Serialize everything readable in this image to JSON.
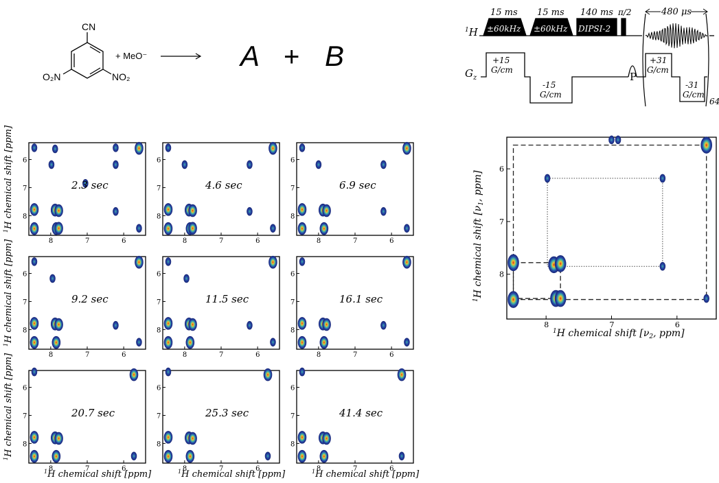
{
  "reaction": {
    "substituent_top": "CN",
    "substituent_left": "O₂N",
    "substituent_right": "NO₂",
    "reagent": "+ MeO⁻",
    "products": [
      "A",
      "+",
      "B"
    ]
  },
  "pulse_sequence": {
    "channel_h": "1H",
    "channel_g": "Gz",
    "block_labels": [
      "±60kHz",
      "±60kHz",
      "DIPSI-2"
    ],
    "durations": [
      "15 ms",
      "15 ms",
      "140 ms"
    ],
    "pi_half": "π/2",
    "acq_time": "480 μs",
    "pulse_p": "P",
    "scans": "64",
    "gradients": [
      {
        "value": "+15",
        "unit": "G/cm"
      },
      {
        "value": "-15",
        "unit": "G/cm"
      },
      {
        "value": "+31",
        "unit": "G/cm"
      },
      {
        "value": "-31",
        "unit": "G/cm"
      }
    ]
  },
  "chart_data": [
    {
      "type": "heatmap",
      "panel": "2.3 sec",
      "xlim": [
        8.6,
        5.4
      ],
      "ylim": [
        5.4,
        8.7
      ],
      "peaks": [
        [
          8.45,
          5.58
        ],
        [
          8.45,
          7.78
        ],
        [
          8.45,
          8.46
        ],
        [
          7.88,
          5.62
        ],
        [
          7.88,
          7.8
        ],
        [
          7.85,
          8.46
        ],
        [
          7.78,
          7.82
        ],
        [
          7.78,
          8.45
        ],
        [
          6.22,
          5.58
        ],
        [
          6.22,
          6.18
        ],
        [
          6.22,
          7.85
        ],
        [
          5.58,
          5.6
        ],
        [
          5.58,
          8.45
        ],
        [
          7.05,
          6.85
        ],
        [
          7.98,
          6.18
        ]
      ]
    },
    {
      "type": "heatmap",
      "panel": "4.6 sec",
      "xlim": [
        8.6,
        5.4
      ],
      "ylim": [
        5.4,
        8.7
      ],
      "peaks": [
        [
          8.45,
          5.58
        ],
        [
          8.45,
          7.78
        ],
        [
          8.45,
          8.46
        ],
        [
          7.88,
          7.8
        ],
        [
          7.85,
          8.46
        ],
        [
          7.78,
          7.82
        ],
        [
          7.78,
          8.45
        ],
        [
          6.22,
          6.18
        ],
        [
          6.22,
          7.85
        ],
        [
          5.58,
          5.6
        ],
        [
          5.58,
          8.45
        ],
        [
          8.0,
          6.18
        ]
      ]
    },
    {
      "type": "heatmap",
      "panel": "6.9 sec",
      "xlim": [
        8.6,
        5.4
      ],
      "ylim": [
        5.4,
        8.7
      ],
      "peaks": [
        [
          8.45,
          5.58
        ],
        [
          8.45,
          7.78
        ],
        [
          8.45,
          8.46
        ],
        [
          7.88,
          7.8
        ],
        [
          7.85,
          8.46
        ],
        [
          7.78,
          7.82
        ],
        [
          6.22,
          6.18
        ],
        [
          6.22,
          7.85
        ],
        [
          5.58,
          5.6
        ],
        [
          5.58,
          8.45
        ],
        [
          8.0,
          6.18
        ]
      ]
    },
    {
      "type": "heatmap",
      "panel": "9.2 sec",
      "xlim": [
        8.6,
        5.4
      ],
      "ylim": [
        5.4,
        8.7
      ],
      "peaks": [
        [
          8.45,
          5.58
        ],
        [
          8.45,
          7.78
        ],
        [
          8.45,
          8.46
        ],
        [
          7.88,
          7.8
        ],
        [
          7.85,
          8.46
        ],
        [
          7.78,
          7.82
        ],
        [
          6.22,
          7.85
        ],
        [
          5.58,
          5.6
        ],
        [
          5.58,
          8.45
        ],
        [
          7.95,
          6.18
        ]
      ]
    },
    {
      "type": "heatmap",
      "panel": "11.5 sec",
      "xlim": [
        8.6,
        5.4
      ],
      "ylim": [
        5.4,
        8.7
      ],
      "peaks": [
        [
          8.45,
          5.58
        ],
        [
          8.45,
          7.78
        ],
        [
          8.45,
          8.46
        ],
        [
          7.88,
          7.8
        ],
        [
          7.85,
          8.46
        ],
        [
          7.78,
          7.82
        ],
        [
          6.22,
          7.85
        ],
        [
          5.58,
          5.6
        ],
        [
          5.58,
          8.45
        ],
        [
          7.95,
          6.18
        ]
      ]
    },
    {
      "type": "heatmap",
      "panel": "16.1 sec",
      "xlim": [
        8.6,
        5.4
      ],
      "ylim": [
        5.4,
        8.7
      ],
      "peaks": [
        [
          8.45,
          5.58
        ],
        [
          8.45,
          7.78
        ],
        [
          8.45,
          8.46
        ],
        [
          7.88,
          7.8
        ],
        [
          7.85,
          8.46
        ],
        [
          7.78,
          7.82
        ],
        [
          6.22,
          7.85
        ],
        [
          5.58,
          5.6
        ],
        [
          5.58,
          8.45
        ]
      ]
    },
    {
      "type": "heatmap",
      "panel": "20.7 sec",
      "xlim": [
        8.6,
        5.4
      ],
      "ylim": [
        5.4,
        8.7
      ],
      "peaks": [
        [
          8.45,
          5.45
        ],
        [
          8.45,
          7.78
        ],
        [
          8.45,
          8.46
        ],
        [
          7.88,
          7.8
        ],
        [
          7.85,
          8.46
        ],
        [
          7.78,
          7.82
        ],
        [
          5.72,
          5.55
        ],
        [
          5.72,
          8.45
        ]
      ]
    },
    {
      "type": "heatmap",
      "panel": "25.3 sec",
      "xlim": [
        8.6,
        5.4
      ],
      "ylim": [
        5.4,
        8.7
      ],
      "peaks": [
        [
          8.45,
          5.45
        ],
        [
          8.45,
          7.78
        ],
        [
          8.45,
          8.46
        ],
        [
          7.88,
          7.8
        ],
        [
          7.85,
          8.46
        ],
        [
          7.78,
          7.82
        ],
        [
          5.72,
          5.55
        ],
        [
          5.72,
          8.45
        ]
      ]
    },
    {
      "type": "heatmap",
      "panel": "41.4 sec",
      "xlim": [
        8.6,
        5.4
      ],
      "ylim": [
        5.4,
        8.7
      ],
      "peaks": [
        [
          8.45,
          5.45
        ],
        [
          8.45,
          7.78
        ],
        [
          8.45,
          8.46
        ],
        [
          7.88,
          7.8
        ],
        [
          7.85,
          8.46
        ],
        [
          7.78,
          7.82
        ],
        [
          5.72,
          5.55
        ],
        [
          5.72,
          8.45
        ]
      ]
    }
  ],
  "small_axes": {
    "ylabel": "1H chemical shift [ppm]",
    "xlabel": "1H chemical shift [ppm]",
    "xticks": [
      "8",
      "7",
      "6"
    ],
    "yticks": [
      "6",
      "7",
      "8"
    ]
  },
  "large_chart": {
    "type": "heatmap",
    "xlim": [
      8.6,
      5.4
    ],
    "ylim": [
      5.4,
      8.85
    ],
    "xlabel_prefix": "1H chemical shift [",
    "xlabel_sym": "ν",
    "xlabel_sub": "2",
    "xlabel_suffix": ", ppm]",
    "ylabel_prefix": "1H chemical shift [",
    "ylabel_sym": "ν",
    "ylabel_sub": "1",
    "ylabel_suffix": ", ppm]",
    "xticks": [
      "8",
      "7",
      "6"
    ],
    "yticks": [
      "6",
      "7",
      "8"
    ],
    "peaks": [
      [
        8.5,
        7.78
      ],
      [
        8.5,
        8.48
      ],
      [
        7.88,
        7.82
      ],
      [
        7.85,
        8.46
      ],
      [
        7.78,
        7.8
      ],
      [
        7.78,
        8.46
      ],
      [
        6.22,
        6.18
      ],
      [
        6.22,
        7.85
      ],
      [
        5.55,
        5.55
      ],
      [
        5.55,
        8.46
      ],
      [
        7.98,
        6.18
      ],
      [
        7.0,
        5.45
      ],
      [
        6.9,
        5.45
      ]
    ],
    "box_dashed": {
      "x1": 8.5,
      "x2": 5.55,
      "y1": 5.55,
      "y2": 8.48
    },
    "box_dotted": {
      "x1": 7.98,
      "x2": 6.22,
      "y1": 6.18,
      "y2": 7.85
    },
    "inner_dashed": {
      "x1": 8.5,
      "x2": 7.78,
      "y1": 7.78,
      "y2": 8.46
    }
  }
}
